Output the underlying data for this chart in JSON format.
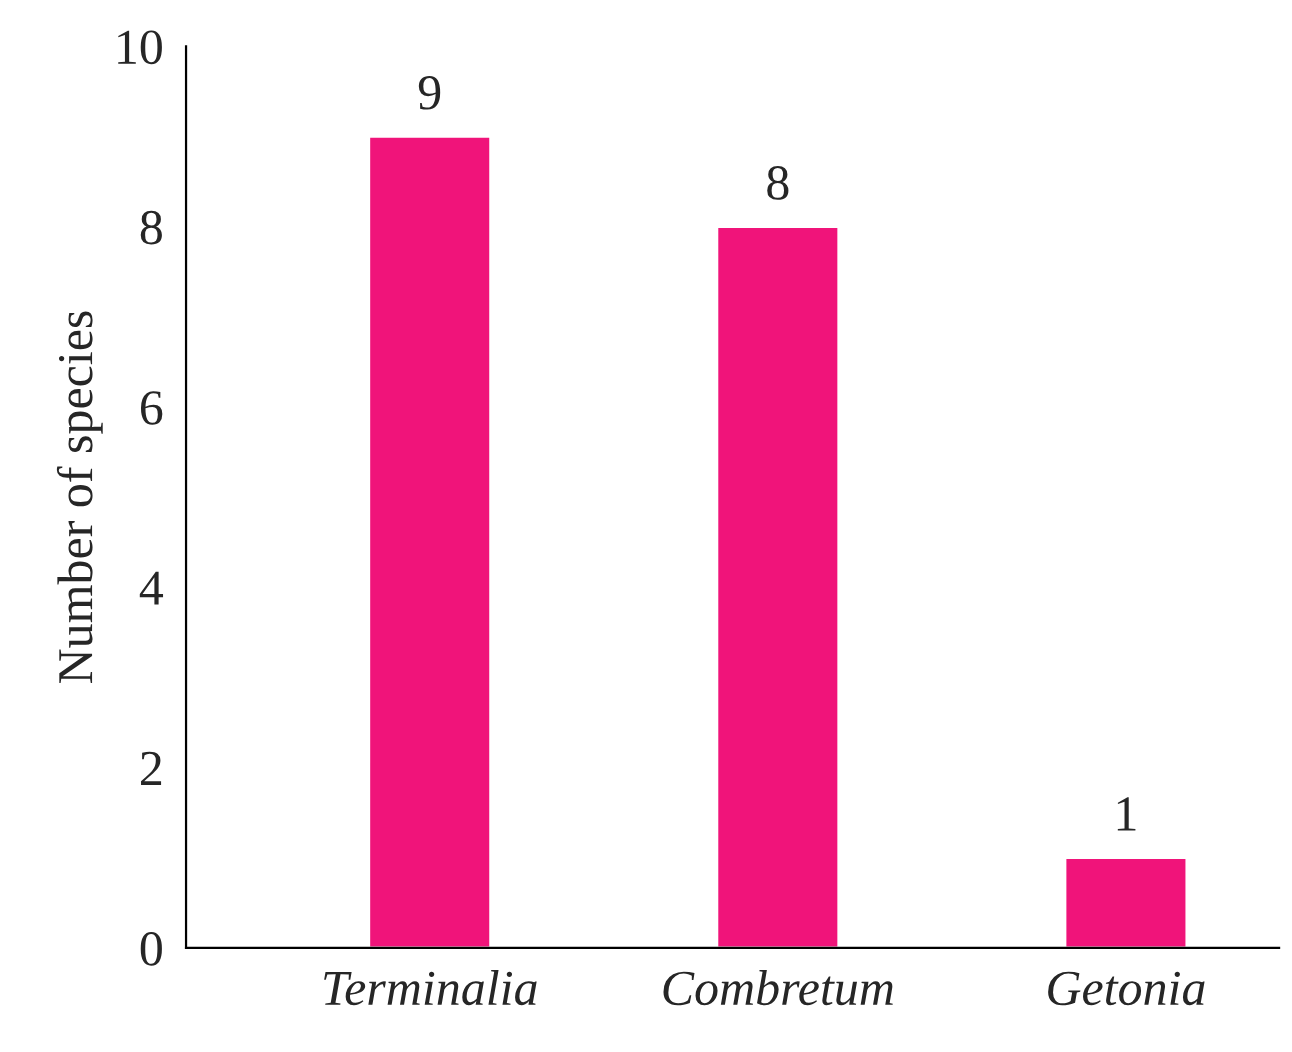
{
  "chart_data": {
    "type": "bar",
    "ylabel": "Number of species",
    "categories": [
      "Terminalia",
      "Combretum",
      "Getonia"
    ],
    "values": [
      9,
      8,
      1
    ],
    "color": "#f0147a",
    "ylim": [
      0,
      10
    ],
    "yticks": [
      0,
      2,
      4,
      6,
      8,
      10
    ],
    "data_labels": true,
    "grid": false
  }
}
